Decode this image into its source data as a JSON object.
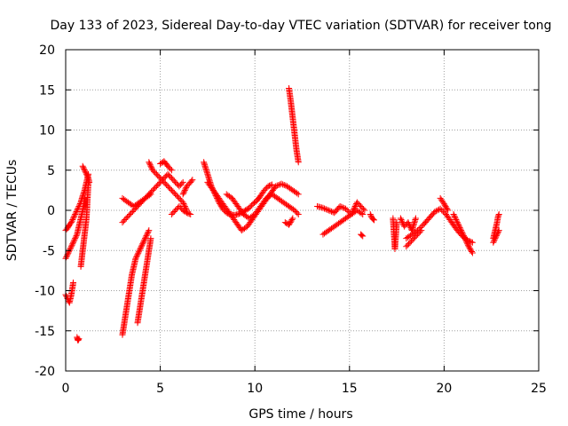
{
  "chart_data": {
    "type": "scatter",
    "title": "Day 133 of 2023, Sidereal Day-to-day VTEC variation (SDTVAR) for receiver tong",
    "xlabel": "GPS time / hours",
    "ylabel": "SDTVAR / TECUs",
    "xlim": [
      0,
      25
    ],
    "ylim": [
      -20,
      20
    ],
    "xticks": [
      0,
      5,
      10,
      15,
      20,
      25
    ],
    "yticks": [
      -20,
      -15,
      -10,
      -5,
      0,
      5,
      10,
      15,
      20
    ],
    "grid": true,
    "marker": "plus",
    "series_color": "#ff0000",
    "segments": [
      {
        "name": "sat-a",
        "x": [
          0.0,
          0.1,
          0.2,
          0.3,
          0.4,
          0.5,
          0.6,
          0.7,
          0.8,
          0.9,
          1.0,
          1.1,
          1.2
        ],
        "y": [
          -2.5,
          -2.2,
          -1.8,
          -1.5,
          -1.0,
          -0.5,
          0.0,
          0.5,
          1.0,
          1.8,
          2.5,
          3.5,
          4.5
        ]
      },
      {
        "name": "sat-b",
        "x": [
          0.0,
          0.1,
          0.2,
          0.3,
          0.4,
          0.5,
          0.6,
          0.7,
          0.8,
          0.9,
          1.0
        ],
        "y": [
          -6.0,
          -5.5,
          -5.0,
          -4.5,
          -4.0,
          -3.5,
          -3.0,
          -2.0,
          -1.0,
          0.0,
          1.5
        ]
      },
      {
        "name": "sat-c",
        "x": [
          0.0,
          0.1,
          0.2,
          0.3,
          0.4
        ],
        "y": [
          -10.5,
          -11.0,
          -11.5,
          -10.5,
          -9.0
        ]
      },
      {
        "name": "sat-d",
        "x": [
          0.6,
          0.65,
          0.7
        ],
        "y": [
          -15.8,
          -16.2,
          -16.0
        ]
      },
      {
        "name": "sat-e",
        "x": [
          0.8,
          0.85,
          0.9,
          0.95,
          1.0,
          1.05,
          1.1,
          1.2
        ],
        "y": [
          -7.0,
          -6.0,
          -5.0,
          -4.0,
          -3.0,
          -2.0,
          -1.0,
          3.5
        ]
      },
      {
        "name": "sat-f",
        "x": [
          0.9,
          1.0,
          1.1,
          1.2,
          1.25
        ],
        "y": [
          5.5,
          5.0,
          4.5,
          4.0,
          3.5
        ]
      },
      {
        "name": "sat-g",
        "x": [
          3.0,
          3.2,
          3.4,
          3.6,
          3.8,
          4.0,
          4.2,
          4.4,
          4.6,
          4.8,
          5.0,
          5.2,
          5.4,
          5.6,
          5.8,
          6.0,
          6.2
        ],
        "y": [
          -1.5,
          -1.0,
          -0.5,
          0.0,
          0.5,
          1.0,
          1.5,
          2.0,
          2.5,
          3.0,
          3.5,
          4.0,
          4.5,
          4.0,
          3.5,
          3.0,
          3.5
        ]
      },
      {
        "name": "sat-h",
        "x": [
          3.0,
          3.1,
          3.2,
          3.3,
          3.4,
          3.5,
          3.6,
          3.7,
          3.8,
          3.9,
          4.0,
          4.1,
          4.2,
          4.3,
          4.4
        ],
        "y": [
          -15.5,
          -14.0,
          -12.5,
          -11.0,
          -9.5,
          -8.0,
          -7.0,
          -6.0,
          -5.5,
          -5.0,
          -4.5,
          -4.0,
          -3.5,
          -3.0,
          -2.5
        ]
      },
      {
        "name": "sat-i",
        "x": [
          3.8,
          3.9,
          4.0,
          4.1,
          4.2,
          4.3,
          4.4,
          4.5
        ],
        "y": [
          -14.0,
          -12.5,
          -11.0,
          -9.5,
          -8.0,
          -6.5,
          -5.0,
          -3.5
        ]
      },
      {
        "name": "sat-j",
        "x": [
          3.0,
          3.3,
          3.6,
          3.9,
          4.2,
          4.5
        ],
        "y": [
          1.5,
          1.0,
          0.5,
          1.0,
          1.5,
          2.0
        ]
      },
      {
        "name": "sat-k",
        "x": [
          4.4,
          4.6,
          4.8,
          5.0,
          5.2,
          5.4,
          5.6,
          5.8,
          6.0,
          6.2,
          6.4
        ],
        "y": [
          6.0,
          5.0,
          4.5,
          4.0,
          3.5,
          3.0,
          2.5,
          2.0,
          1.5,
          1.0,
          0.0
        ]
      },
      {
        "name": "sat-l",
        "x": [
          5.0,
          5.2,
          5.4,
          5.6
        ],
        "y": [
          5.8,
          6.1,
          5.5,
          5.0
        ]
      },
      {
        "name": "sat-m",
        "x": [
          5.6,
          5.8,
          6.0,
          6.2,
          6.4,
          6.6
        ],
        "y": [
          -0.5,
          0.0,
          0.5,
          0.0,
          -0.3,
          -0.5
        ]
      },
      {
        "name": "sat-n",
        "x": [
          6.2,
          6.4,
          6.6,
          6.7
        ],
        "y": [
          2.0,
          3.0,
          3.5,
          3.8
        ]
      },
      {
        "name": "sat-o",
        "x": [
          7.3,
          7.5,
          7.7,
          7.9,
          8.1,
          8.3,
          8.5,
          8.7,
          8.9,
          9.1,
          9.3,
          9.5,
          9.7,
          9.9,
          10.1,
          10.3,
          10.5,
          10.7,
          10.9
        ],
        "y": [
          6.0,
          4.5,
          3.0,
          2.0,
          1.0,
          0.2,
          -0.3,
          -0.5,
          -0.6,
          -0.5,
          -0.3,
          0.0,
          0.3,
          0.8,
          1.2,
          1.8,
          2.5,
          3.0,
          3.2
        ]
      },
      {
        "name": "sat-p",
        "x": [
          7.5,
          7.8,
          8.1,
          8.4,
          8.7,
          9.0,
          9.3,
          9.6,
          9.9,
          10.2,
          10.5,
          10.8,
          11.1,
          11.4,
          11.7,
          12.0,
          12.3
        ],
        "y": [
          3.5,
          2.5,
          1.5,
          0.5,
          -0.5,
          -1.5,
          -2.5,
          -2.0,
          -1.0,
          0.0,
          1.0,
          2.0,
          3.0,
          3.3,
          3.0,
          2.5,
          2.0
        ]
      },
      {
        "name": "sat-q",
        "x": [
          8.5,
          8.8,
          9.1,
          9.4,
          9.7,
          10.0,
          10.3,
          10.6,
          10.9,
          11.2,
          11.5,
          11.8,
          12.1,
          12.3
        ],
        "y": [
          2.0,
          1.5,
          0.5,
          -0.5,
          -1.0,
          -0.5,
          0.5,
          1.5,
          2.0,
          1.5,
          1.0,
          0.5,
          0.0,
          -0.5
        ]
      },
      {
        "name": "sat-r",
        "x": [
          11.8,
          11.9,
          12.0,
          12.1,
          12.2,
          12.3
        ],
        "y": [
          15.2,
          13.5,
          11.5,
          9.5,
          7.5,
          6.0
        ]
      },
      {
        "name": "sat-s",
        "x": [
          11.6,
          11.8,
          12.0
        ],
        "y": [
          -1.5,
          -1.8,
          -1.0
        ]
      },
      {
        "name": "sat-t",
        "x": [
          13.3,
          13.6,
          13.9,
          14.2,
          14.5,
          14.8,
          15.1,
          15.4,
          15.6,
          15.8
        ],
        "y": [
          0.5,
          0.3,
          0.0,
          -0.3,
          0.5,
          0.2,
          -0.5,
          1.0,
          0.5,
          0.0
        ]
      },
      {
        "name": "sat-u",
        "x": [
          13.6,
          13.9,
          14.2,
          14.5,
          14.8,
          15.1,
          15.4,
          15.7
        ],
        "y": [
          -3.0,
          -2.5,
          -2.0,
          -1.5,
          -1.0,
          -0.5,
          0.0,
          -0.5
        ]
      },
      {
        "name": "sat-v",
        "x": [
          15.6,
          15.7
        ],
        "y": [
          -3.0,
          -3.2
        ]
      },
      {
        "name": "sat-w",
        "x": [
          16.1,
          16.2,
          16.3
        ],
        "y": [
          -0.5,
          -1.0,
          -1.2
        ]
      },
      {
        "name": "sat-x",
        "x": [
          17.3,
          17.4,
          17.5
        ],
        "y": [
          -1.0,
          -4.8,
          -1.5
        ]
      },
      {
        "name": "sat-y",
        "x": [
          18.0,
          18.3,
          18.6,
          18.9,
          19.2,
          19.5,
          19.8,
          20.1,
          20.4,
          20.7,
          21.0,
          21.3,
          21.5
        ],
        "y": [
          -3.5,
          -3.0,
          -2.5,
          -1.8,
          -1.0,
          -0.2,
          0.2,
          -0.5,
          -1.5,
          -2.5,
          -3.3,
          -3.8,
          -4.0
        ]
      },
      {
        "name": "sat-z",
        "x": [
          18.0,
          18.2,
          18.4,
          18.6,
          18.8
        ],
        "y": [
          -4.5,
          -4.0,
          -3.5,
          -3.0,
          -2.5
        ]
      },
      {
        "name": "sat-aa",
        "x": [
          19.8,
          20.0,
          20.2
        ],
        "y": [
          1.5,
          0.8,
          0.0
        ]
      },
      {
        "name": "sat-ab",
        "x": [
          20.5,
          20.7,
          20.9,
          21.1,
          21.3,
          21.5
        ],
        "y": [
          -0.5,
          -1.5,
          -2.5,
          -3.5,
          -4.5,
          -5.3
        ]
      },
      {
        "name": "sat-ac",
        "x": [
          17.7,
          17.9,
          18.1,
          18.3,
          18.5
        ],
        "y": [
          -1.0,
          -2.0,
          -1.5,
          -2.5,
          -1.0
        ]
      },
      {
        "name": "sat-ad",
        "x": [
          22.6,
          22.7,
          22.8,
          22.85,
          22.9
        ],
        "y": [
          -3.5,
          -2.5,
          -1.5,
          -0.8,
          -0.5
        ]
      },
      {
        "name": "sat-ae",
        "x": [
          22.6,
          22.7,
          22.8,
          22.9
        ],
        "y": [
          -4.0,
          -3.5,
          -3.0,
          -2.5
        ]
      }
    ]
  }
}
